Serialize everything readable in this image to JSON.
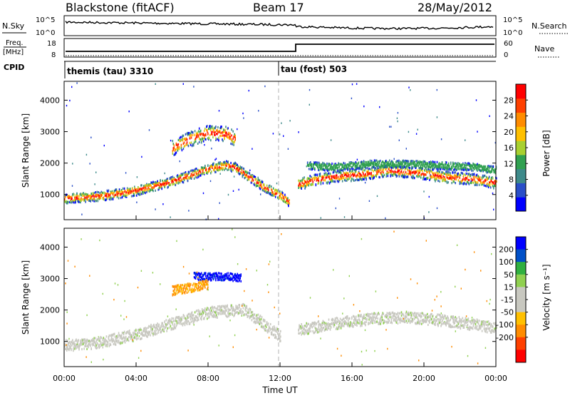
{
  "header": {
    "station": "Blackstone (fitACF)",
    "beam": "Beam 17",
    "date": "28/May/2012"
  },
  "noise_panel": {
    "left_label": "N.Sky",
    "right_label": "N.Search",
    "left_ticks": [
      "10^5",
      "10^0"
    ],
    "right_ticks": [
      "10^5",
      "10^0"
    ]
  },
  "freq_panel": {
    "left_label_1": "Freq.",
    "left_label_2": "[MHz]",
    "right_label": "Nave",
    "left_ticks": [
      "18",
      "8"
    ],
    "right_ticks": [
      "60",
      "0"
    ]
  },
  "cpid_panel": {
    "label": "CPID",
    "segments": [
      {
        "start_hour": 0,
        "text": "themis (tau) 3310"
      },
      {
        "start_hour": 12,
        "text": "tau (fost) 503"
      }
    ]
  },
  "colors": {
    "power_scale": [
      "#0000ff",
      "#2a4fc8",
      "#3e8a8a",
      "#30a050",
      "#a8d030",
      "#ffc000",
      "#ff8c00",
      "#ff4000",
      "#ff0000"
    ],
    "velocity_scale": [
      "#ff0000",
      "#ff4000",
      "#ff8c00",
      "#ffc000",
      "#c8c8c0",
      "#c8c8c0",
      "#90d050",
      "#30b040",
      "#0050c8",
      "#0000ff"
    ],
    "ground_scatter": "#c8c8c0",
    "dashed_line": "#b0b0b0"
  },
  "chart_data": [
    {
      "type": "heatmap",
      "name": "power",
      "ylabel": "Slant Range [km]",
      "x_unit": "hours UT",
      "xlim": [
        0,
        24
      ],
      "ylim": [
        200,
        4600
      ],
      "yticks": [
        1000,
        2000,
        3000,
        4000
      ],
      "colorbar": {
        "label": "Power [dB]",
        "range": [
          0,
          32
        ],
        "ticks": [
          4,
          8,
          12,
          16,
          20,
          24,
          28
        ]
      },
      "echo_bands": [
        {
          "t": [
            0,
            2,
            4,
            6,
            7,
            8,
            9,
            9.5,
            10,
            11,
            12,
            12.5
          ],
          "range": [
            900,
            980,
            1150,
            1450,
            1650,
            1850,
            1950,
            1900,
            1700,
            1300,
            1000,
            800
          ],
          "width": 250
        },
        {
          "t": [
            13,
            14,
            15,
            16,
            17,
            18,
            19,
            20,
            21,
            22,
            23,
            24
          ],
          "range": [
            1350,
            1500,
            1600,
            1650,
            1700,
            1800,
            1750,
            1700,
            1600,
            1550,
            1500,
            1400
          ],
          "width": 300
        },
        {
          "t": [
            6,
            7,
            8,
            9,
            9.5
          ],
          "range": [
            2500,
            2800,
            3000,
            2950,
            2800
          ],
          "width": 400
        },
        {
          "t": [
            13.5,
            15,
            17,
            19,
            21,
            23,
            24
          ],
          "range": [
            1950,
            1900,
            2000,
            2000,
            1950,
            1900,
            1800
          ],
          "width": 200
        }
      ]
    },
    {
      "type": "heatmap",
      "name": "velocity",
      "ylabel": "Slant Range [km]",
      "xlabel": "Time UT",
      "x_unit": "hours UT",
      "xlim": [
        0,
        24
      ],
      "ylim": [
        200,
        4600
      ],
      "yticks": [
        1000,
        2000,
        3000,
        4000
      ],
      "xticks": [
        "00:00",
        "04:00",
        "08:00",
        "12:00",
        "16:00",
        "20:00",
        "00:00"
      ],
      "xtick_hours": [
        0,
        4,
        8,
        12,
        16,
        20,
        24
      ],
      "colorbar": {
        "label": "Velocity [m s⁻¹]",
        "ticks": [
          "200",
          "100",
          "50",
          "15",
          "-15",
          "-50",
          "-100",
          "-200"
        ]
      },
      "echo_bands": [
        {
          "t": [
            0,
            2,
            4,
            6,
            8,
            10,
            12
          ],
          "range": [
            900,
            1000,
            1250,
            1600,
            1950,
            2050,
            1200
          ],
          "width": 300,
          "kind": "ground"
        },
        {
          "t": [
            13,
            15,
            17,
            19,
            21,
            23,
            24
          ],
          "range": [
            1400,
            1600,
            1750,
            1800,
            1700,
            1550,
            1450
          ],
          "width": 300,
          "kind": "ground"
        },
        {
          "t": [
            7.2,
            8,
            9,
            9.8
          ],
          "range": [
            3100,
            3100,
            3100,
            3050
          ],
          "width": 200,
          "kind": "toward"
        },
        {
          "t": [
            6,
            7,
            8
          ],
          "range": [
            2650,
            2750,
            2850
          ],
          "width": 250,
          "kind": "away"
        }
      ]
    }
  ]
}
